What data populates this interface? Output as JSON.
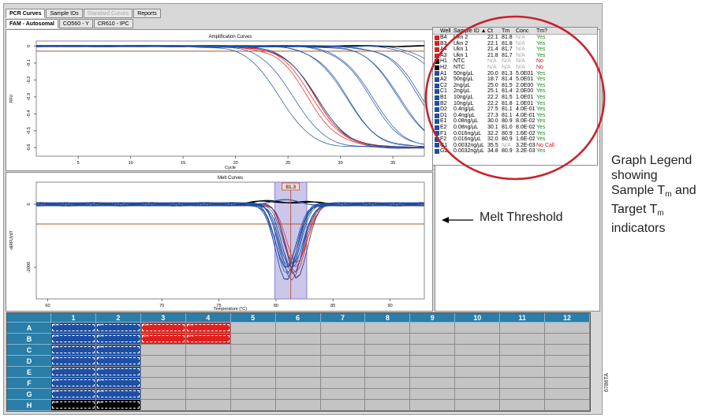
{
  "tabs": [
    {
      "label": "PCR Curves",
      "active": true,
      "enabled": true
    },
    {
      "label": "Sample IDs",
      "active": false,
      "enabled": true
    },
    {
      "label": "Standard Curves",
      "active": false,
      "enabled": false
    },
    {
      "label": "Reports",
      "active": false,
      "enabled": true
    }
  ],
  "channel_tabs": [
    {
      "label": "FAM - Autosomal",
      "active": true
    },
    {
      "label": "CO560 - Y",
      "active": false
    },
    {
      "label": "CR610 - IPC",
      "active": false
    }
  ],
  "amp_chart": {
    "title": "Amplification Curves",
    "ylabel": "RFU",
    "xlabel": "Cycle",
    "x_ticks": [
      "5",
      "10",
      "15",
      "20",
      "25",
      "30",
      "35"
    ],
    "y_ticks": [
      "0",
      "-0.1",
      "-0.2",
      "-0.3",
      "-0.4",
      "-0.5",
      "-0.6"
    ],
    "xlim": [
      1,
      38
    ],
    "ylim": [
      -0.65,
      0.03
    ],
    "threshold": -0.03
  },
  "melt_chart": {
    "title": "Melt Curves",
    "ylabel": "-d(RFU)/dT",
    "xlabel": "Temperature (°C)",
    "x_ticks": [
      "60",
      "70",
      "75",
      "80",
      "85",
      "90"
    ],
    "y_ticks": [
      "0",
      "-2000"
    ],
    "marker_label": "81.3",
    "marker_t": 81.3,
    "band": [
      79.9,
      82.7
    ],
    "xlim": [
      59,
      93
    ]
  },
  "legend": {
    "columns": [
      "Well",
      "Sample ID ▲",
      "Ct",
      "Tm",
      "Conc",
      "Tm?"
    ],
    "rows": [
      {
        "well": "B4",
        "id": "Ukn 2",
        "ct": "22.1",
        "tm": "81.8",
        "conc": "N/A",
        "ok": "Yes",
        "color": "#e0201c"
      },
      {
        "well": "B3",
        "id": "Ukn 2",
        "ct": "22.1",
        "tm": "81.8",
        "conc": "N/A",
        "ok": "Yes",
        "color": "#e0201c"
      },
      {
        "well": "A4",
        "id": "Ukn 1",
        "ct": "21.4",
        "tm": "81.7",
        "conc": "N/A",
        "ok": "Yes",
        "color": "#e0201c"
      },
      {
        "well": "A3",
        "id": "Ukn 1",
        "ct": "21.8",
        "tm": "81.7",
        "conc": "N/A",
        "ok": "Yes",
        "color": "#e0201c"
      },
      {
        "well": "H1",
        "id": "NTC",
        "ct": "N/A",
        "tm": "N/A",
        "conc": "N/A",
        "ok": "No",
        "color": "#000000"
      },
      {
        "well": "H2",
        "id": "NTC",
        "ct": "N/A",
        "tm": "N/A",
        "conc": "N/A",
        "ok": "No",
        "color": "#000000"
      },
      {
        "well": "A1",
        "id": "50ng/µL",
        "ct": "20.0",
        "tm": "81.3",
        "conc": "5.0E01",
        "ok": "Yes",
        "color": "#1e4fa3"
      },
      {
        "well": "A2",
        "id": "50ng/µL",
        "ct": "18.7",
        "tm": "81.4",
        "conc": "5.0E01",
        "ok": "Yes",
        "color": "#1e4fa3"
      },
      {
        "well": "C2",
        "id": "2ng/µL",
        "ct": "25.0",
        "tm": "81.5",
        "conc": "2.0E00",
        "ok": "Yes",
        "color": "#1e4fa3"
      },
      {
        "well": "C1",
        "id": "2ng/µL",
        "ct": "25.1",
        "tm": "81.4",
        "conc": "2.0E00",
        "ok": "Yes",
        "color": "#1e4fa3"
      },
      {
        "well": "B1",
        "id": "10ng/µL",
        "ct": "22.2",
        "tm": "81.5",
        "conc": "1.0E01",
        "ok": "Yes",
        "color": "#1e4fa3"
      },
      {
        "well": "B2",
        "id": "10ng/µL",
        "ct": "22.2",
        "tm": "81.8",
        "conc": "1.0E01",
        "ok": "Yes",
        "color": "#1e4fa3"
      },
      {
        "well": "D2",
        "id": "0.4ng/µL",
        "ct": "27.5",
        "tm": "81.1",
        "conc": "4.0E-01",
        "ok": "Yes",
        "color": "#1e4fa3"
      },
      {
        "well": "D1",
        "id": "0.4ng/µL",
        "ct": "27.3",
        "tm": "81.1",
        "conc": "4.0E-01",
        "ok": "Yes",
        "color": "#1e4fa3"
      },
      {
        "well": "E1",
        "id": "0.08ng/µL",
        "ct": "30.0",
        "tm": "80.9",
        "conc": "8.0E-02",
        "ok": "Yes",
        "color": "#1e4fa3"
      },
      {
        "well": "E2",
        "id": "0.08ng/µL",
        "ct": "30.1",
        "tm": "81.0",
        "conc": "8.0E-02",
        "ok": "Yes",
        "color": "#1e4fa3"
      },
      {
        "well": "F1",
        "id": "0.016ng/µL",
        "ct": "32.2",
        "tm": "80.9",
        "conc": "1.6E-02",
        "ok": "Yes",
        "color": "#1e4fa3"
      },
      {
        "well": "F2",
        "id": "0.016ng/µL",
        "ct": "32.0",
        "tm": "80.9",
        "conc": "1.6E-02",
        "ok": "Yes",
        "color": "#1e4fa3"
      },
      {
        "well": "G1",
        "id": "0.0032ng/µL",
        "ct": "35.5",
        "tm": "N/A",
        "conc": "3.2E-03",
        "ok": "No Call",
        "color": "#1e4fa3"
      },
      {
        "well": "G2",
        "id": "0.0032ng/µL",
        "ct": "34.8",
        "tm": "80.9",
        "conc": "3.2E-03",
        "ok": "Yes",
        "color": "#1e4fa3"
      }
    ]
  },
  "annotations": {
    "melt_threshold": "Melt Threshold",
    "legend_note_1": "Graph Legend",
    "legend_note_2": "showing",
    "legend_note_3a": "Sample T",
    "legend_note_3b": " and",
    "legend_note_4a": "Target T",
    "legend_note_5": "indicators",
    "subscript": "m"
  },
  "plate": {
    "columns": [
      "1",
      "2",
      "3",
      "4",
      "5",
      "6",
      "7",
      "8",
      "9",
      "10",
      "11",
      "12"
    ],
    "rows": [
      "A",
      "B",
      "C",
      "D",
      "E",
      "F",
      "G",
      "H"
    ],
    "wells": {
      "A1": "std",
      "A2": "std",
      "A3": "unk",
      "A4": "unk",
      "B1": "std",
      "B2": "std",
      "B3": "unk",
      "B4": "unk",
      "C1": "std",
      "C2": "std",
      "D1": "std",
      "D2": "std",
      "E1": "std",
      "E2": "std",
      "F1": "std",
      "F2": "std",
      "G1": "std",
      "G2": "std",
      "H1": "ntc",
      "H2": "ntc"
    }
  },
  "figure_id": "6786TA",
  "colors": {
    "standard": "#1e4fa3",
    "unknown": "#e0201c",
    "ntc": "#000000",
    "threshold": "#b5541c",
    "marker": "#8a7fd0"
  }
}
